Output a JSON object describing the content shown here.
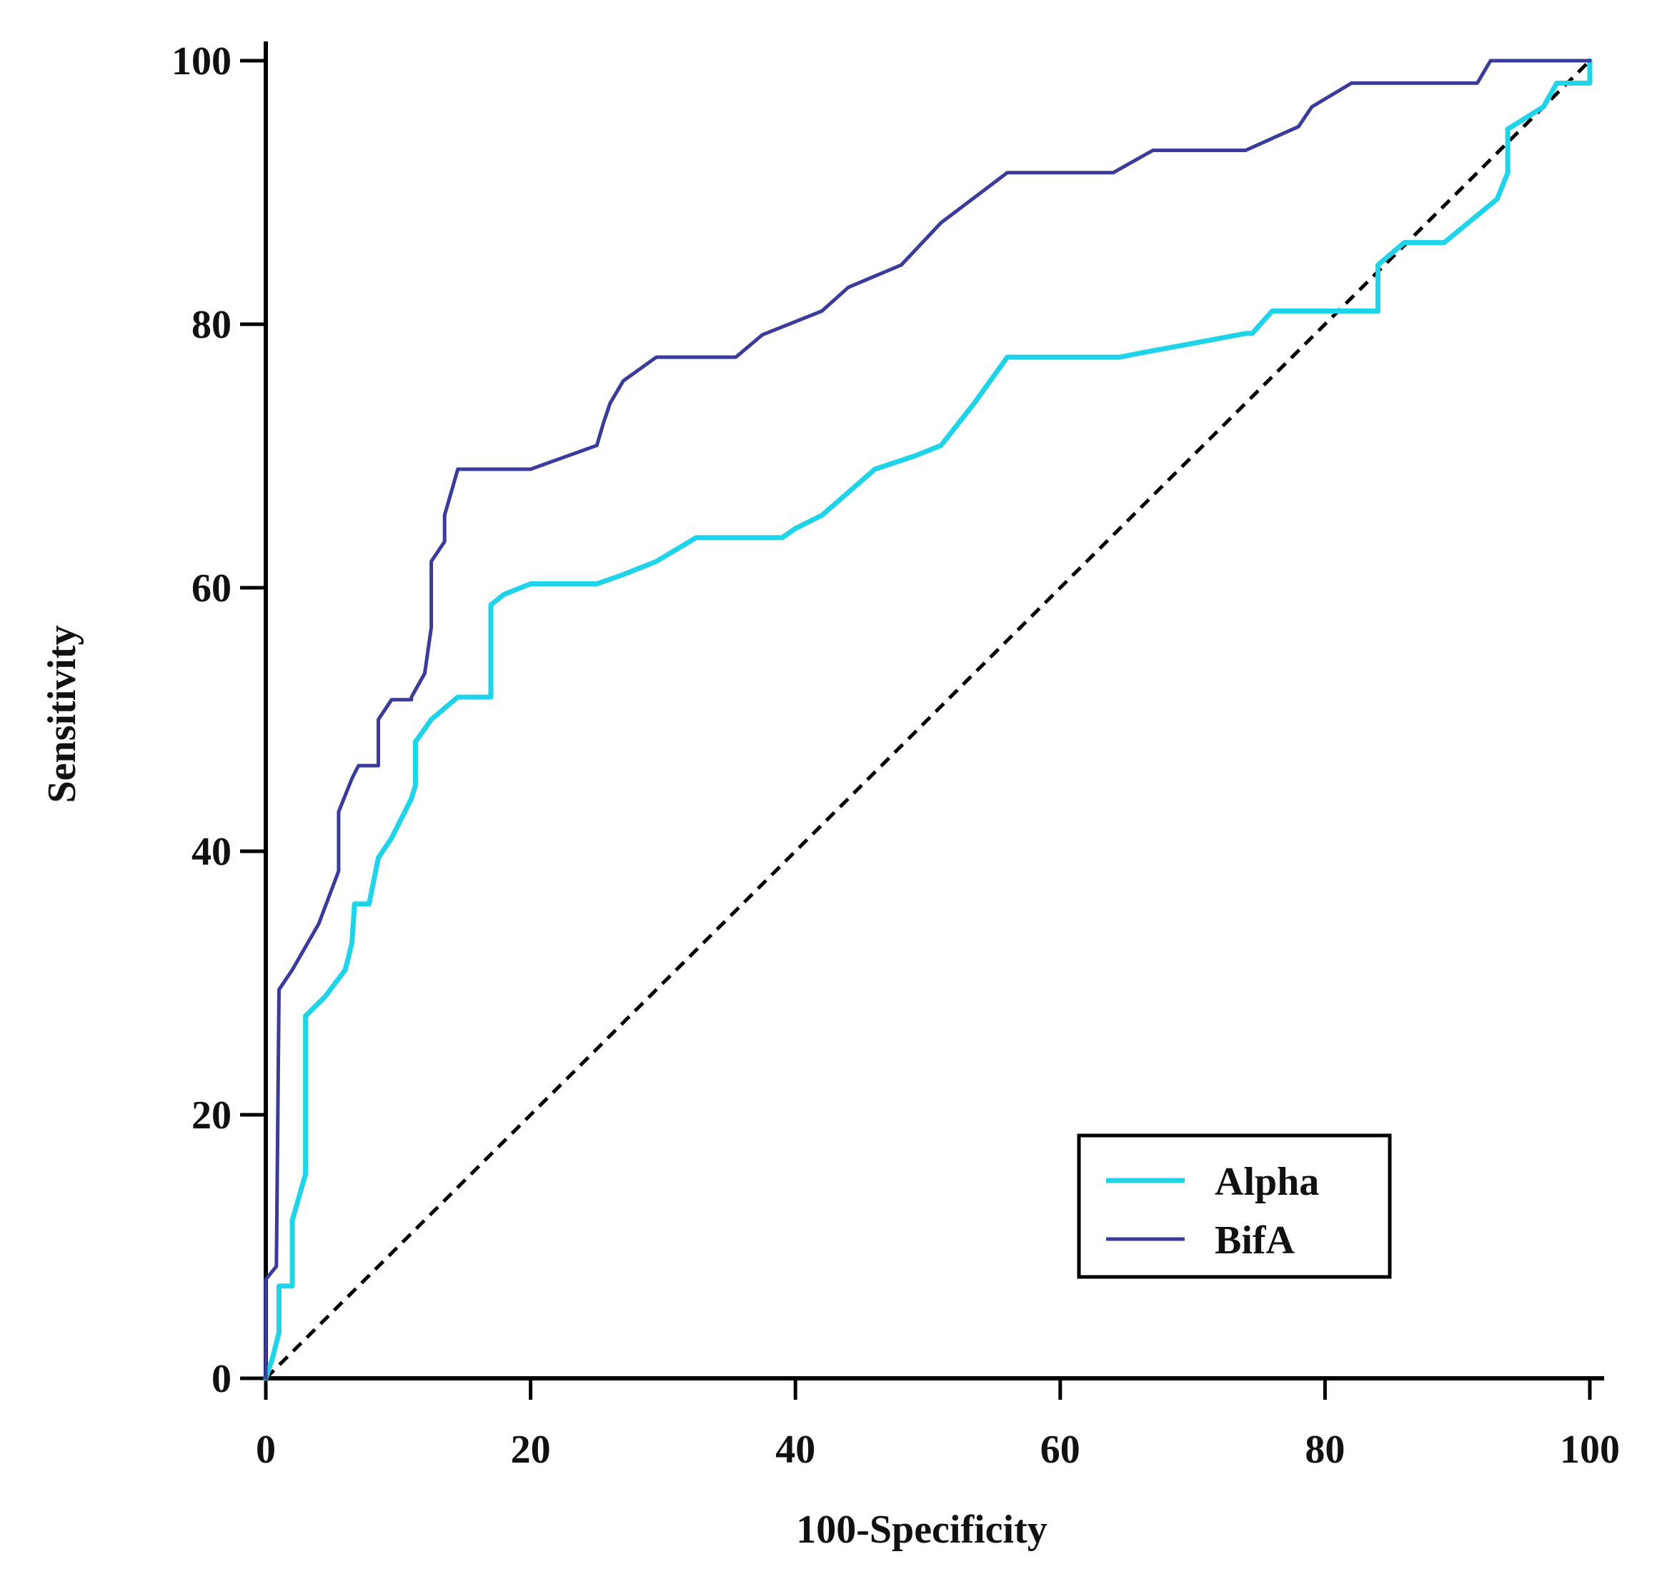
{
  "chart_data": {
    "type": "line",
    "title": "",
    "xlabel": "100-Specificity",
    "ylabel": "Sensitivity",
    "xlim": [
      0,
      100
    ],
    "ylim": [
      0,
      100
    ],
    "xticks": [
      "0",
      "20",
      "40",
      "60",
      "80",
      "100"
    ],
    "yticks": [
      "0",
      "20",
      "40",
      "60",
      "80",
      "100"
    ],
    "grid": false,
    "legend_position": "bottom-right",
    "reference_line": {
      "name": "reference",
      "style": "dashed",
      "color": "#000000",
      "points": [
        [
          0,
          0
        ],
        [
          100,
          100
        ]
      ]
    },
    "series": [
      {
        "name": "Alpha",
        "color": "#1FD3E8",
        "points": [
          [
            0,
            0
          ],
          [
            0.5,
            1.5
          ],
          [
            1,
            3.5
          ],
          [
            1,
            7
          ],
          [
            2,
            7
          ],
          [
            2,
            12
          ],
          [
            3,
            15.5
          ],
          [
            3,
            27.5
          ],
          [
            4.5,
            29
          ],
          [
            6,
            31
          ],
          [
            6.5,
            33
          ],
          [
            6.7,
            36
          ],
          [
            7.8,
            36
          ],
          [
            8.5,
            39.5
          ],
          [
            9.5,
            41
          ],
          [
            11,
            44
          ],
          [
            11.3,
            45
          ],
          [
            11.3,
            48.3
          ],
          [
            12.5,
            50
          ],
          [
            14.5,
            51.7
          ],
          [
            17,
            51.7
          ],
          [
            17,
            58.7
          ],
          [
            18,
            59.5
          ],
          [
            20,
            60.3
          ],
          [
            25,
            60.3
          ],
          [
            27,
            61
          ],
          [
            29.5,
            62
          ],
          [
            32.5,
            63.8
          ],
          [
            39,
            63.8
          ],
          [
            40,
            64.5
          ],
          [
            42,
            65.5
          ],
          [
            46,
            69
          ],
          [
            49,
            70
          ],
          [
            51,
            70.8
          ],
          [
            53.5,
            74
          ],
          [
            56,
            77.5
          ],
          [
            64.5,
            77.5
          ],
          [
            66,
            77.8
          ],
          [
            74,
            79.3
          ],
          [
            74.5,
            79.3
          ],
          [
            76,
            81
          ],
          [
            84,
            81
          ],
          [
            84,
            84.5
          ],
          [
            86,
            86.2
          ],
          [
            89,
            86.2
          ],
          [
            93,
            89.5
          ],
          [
            93.8,
            91.5
          ],
          [
            93.8,
            94.8
          ],
          [
            96.5,
            96.5
          ],
          [
            97.5,
            98.3
          ],
          [
            100,
            98.3
          ],
          [
            100,
            100
          ]
        ]
      },
      {
        "name": "BifA",
        "color": "#3B3B9C",
        "points": [
          [
            0,
            0
          ],
          [
            0,
            7.5
          ],
          [
            0.8,
            8.5
          ],
          [
            1,
            29.5
          ],
          [
            2,
            31
          ],
          [
            4,
            34.5
          ],
          [
            5.5,
            38.5
          ],
          [
            5.5,
            43
          ],
          [
            6.5,
            45.5
          ],
          [
            7,
            46.5
          ],
          [
            8.5,
            46.5
          ],
          [
            8.5,
            50
          ],
          [
            9.5,
            51.5
          ],
          [
            11,
            51.5
          ],
          [
            11,
            51.7
          ],
          [
            12,
            53.5
          ],
          [
            12.5,
            57
          ],
          [
            12.5,
            62
          ],
          [
            13.5,
            63.5
          ],
          [
            13.5,
            65.5
          ],
          [
            14.5,
            69
          ],
          [
            20,
            69
          ],
          [
            25,
            70.8
          ],
          [
            25.5,
            72.5
          ],
          [
            26,
            74
          ],
          [
            27,
            75.7
          ],
          [
            29.5,
            77.5
          ],
          [
            35.5,
            77.5
          ],
          [
            37.5,
            79.2
          ],
          [
            42,
            81
          ],
          [
            44,
            82.8
          ],
          [
            48,
            84.5
          ],
          [
            51,
            87.7
          ],
          [
            56,
            91.5
          ],
          [
            64,
            91.5
          ],
          [
            67,
            93.2
          ],
          [
            74,
            93.2
          ],
          [
            78,
            95
          ],
          [
            79,
            96.5
          ],
          [
            82,
            98.3
          ],
          [
            91.5,
            98.3
          ],
          [
            92.5,
            100
          ],
          [
            100,
            100
          ]
        ]
      }
    ]
  }
}
